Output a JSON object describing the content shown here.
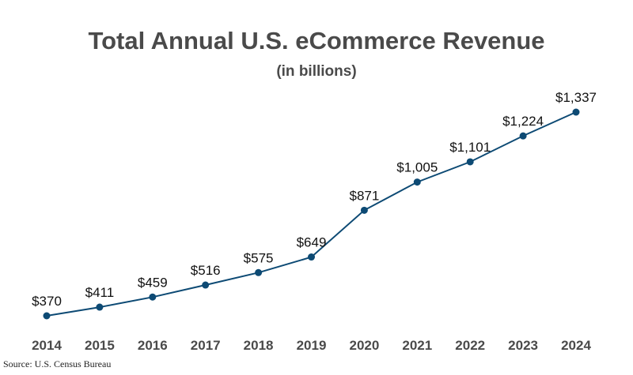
{
  "chart_data": {
    "type": "line",
    "title": "Total Annual U.S. eCommerce Revenue",
    "subtitle": "(in billions)",
    "x": [
      "2014",
      "2015",
      "2016",
      "2017",
      "2018",
      "2019",
      "2020",
      "2021",
      "2022",
      "2023",
      "2024"
    ],
    "series": [
      {
        "values": [
          370,
          411,
          459,
          516,
          575,
          649,
          871,
          1005,
          1101,
          1224,
          1337
        ],
        "labels": [
          "$370",
          "$411",
          "$459",
          "$516",
          "$575",
          "$649",
          "$871",
          "$1,005",
          "$1,101",
          "$1,224",
          "$1,337"
        ]
      }
    ],
    "grid": false,
    "color": "#0d4a74"
  },
  "source": "Source: U.S. Census Bureau"
}
